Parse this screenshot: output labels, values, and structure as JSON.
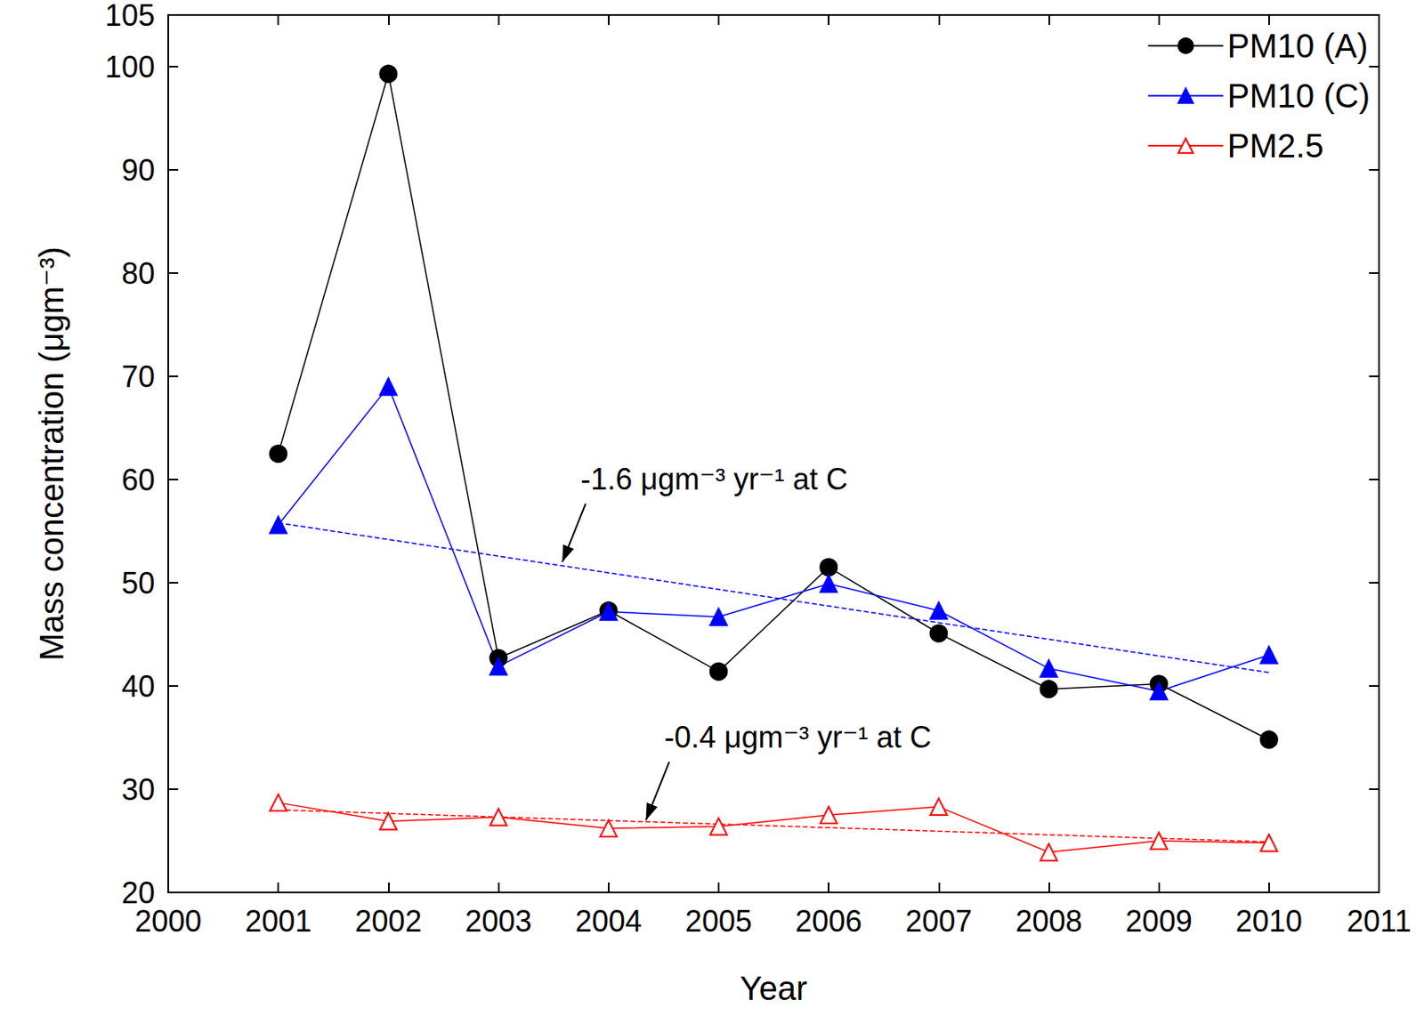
{
  "chart_data": {
    "type": "line",
    "x_label": "Year",
    "y_label": "Mass concentration (μgm⁻³)",
    "xlim": [
      2000,
      2011
    ],
    "xticks": [
      2000,
      2001,
      2002,
      2003,
      2004,
      2005,
      2006,
      2007,
      2008,
      2009,
      2010,
      2011
    ],
    "ylim": [
      20,
      105
    ],
    "yticks": [
      20,
      30,
      40,
      50,
      60,
      70,
      80,
      90,
      100
    ],
    "grid": false,
    "legend": "upper right",
    "x": [
      2001,
      2002,
      2003,
      2004,
      2005,
      2006,
      2007,
      2008,
      2009,
      2010
    ],
    "series": [
      {
        "name": "PM10 (A)",
        "color": "#000000",
        "marker": "circle",
        "line_style": "solid",
        "values": [
          62.5,
          99.3,
          42.7,
          47.3,
          41.4,
          51.5,
          45.1,
          39.7,
          40.2,
          34.8
        ]
      },
      {
        "name": "PM10 (C)",
        "color": "#0000ff",
        "marker": "triangle",
        "line_style": "solid",
        "values": [
          55.6,
          69.0,
          41.9,
          47.2,
          46.7,
          49.9,
          47.3,
          41.7,
          39.5,
          43.0
        ]
      },
      {
        "name": "PM2.5",
        "color": "#ff0000",
        "marker": "open_triangle",
        "line_style": "solid",
        "values": [
          28.7,
          26.9,
          27.3,
          26.2,
          26.4,
          27.5,
          28.3,
          23.9,
          25.0,
          24.8
        ]
      }
    ],
    "trend_lines": [
      {
        "x": [
          2001,
          2010
        ],
        "values": [
          55.8,
          41.3
        ],
        "color": "#0000ff",
        "line_style": "dashed"
      },
      {
        "x": [
          2001,
          2010
        ],
        "values": [
          28.0,
          24.9
        ],
        "color": "#ff0000",
        "line_style": "dashed"
      }
    ],
    "annotations": [
      {
        "text": "-1.6 μgm⁻³ yr⁻¹ at C",
        "x": 2003.58,
        "y": 52.0
      },
      {
        "text": "-0.4 μgm⁻³ yr⁻¹ at C",
        "x": 2004.34,
        "y": 27.0
      }
    ]
  }
}
